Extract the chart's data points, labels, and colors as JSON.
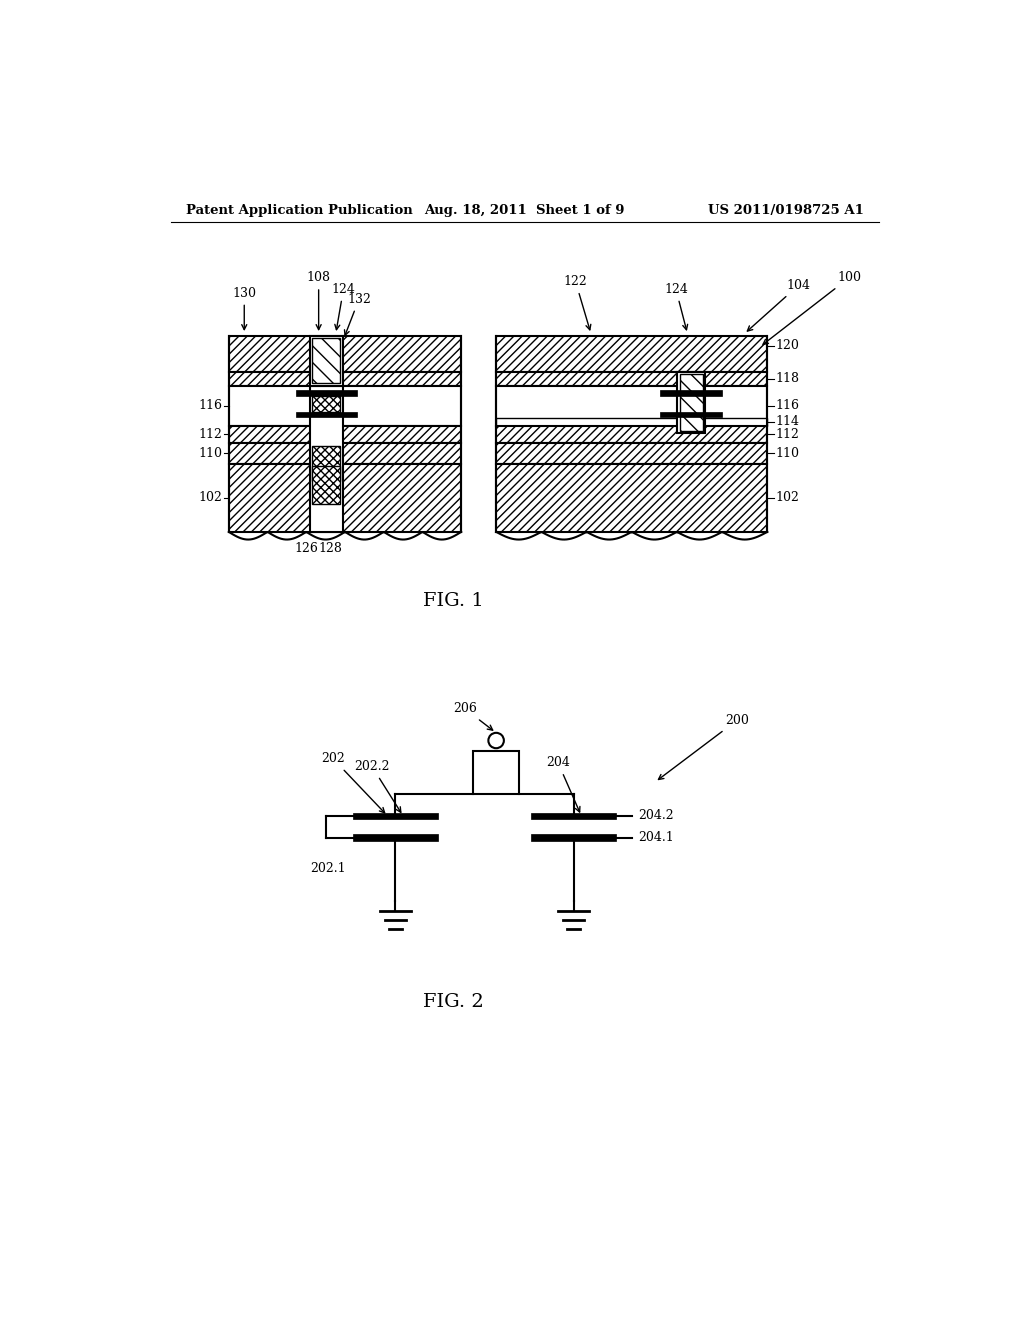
{
  "header_left": "Patent Application Publication",
  "header_center": "Aug. 18, 2011  Sheet 1 of 9",
  "header_right": "US 2011/0198725 A1",
  "fig1_label": "FIG. 1",
  "fig2_label": "FIG. 2",
  "bg_color": "#ffffff"
}
